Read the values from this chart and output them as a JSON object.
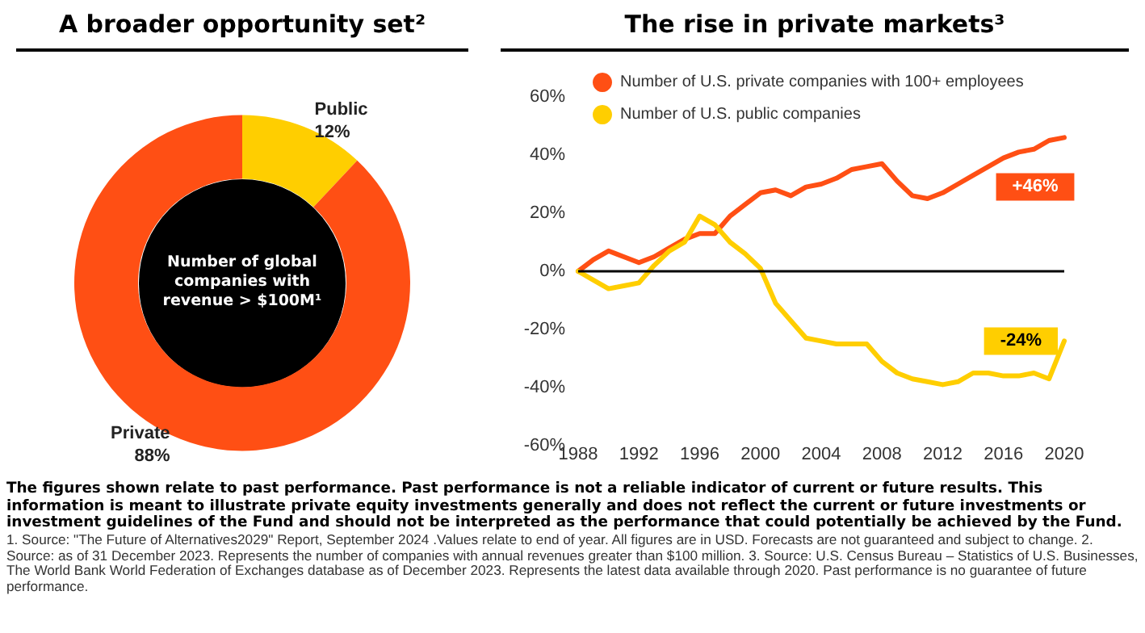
{
  "chart_data": [
    {
      "type": "donut",
      "title": "A broader opportunity set²",
      "categories": [
        "Public",
        "Private"
      ],
      "values": [
        12,
        88
      ],
      "colors": [
        "#ffce00",
        "#ff4f14"
      ],
      "value_labels": [
        "12%",
        "88%"
      ],
      "annotations": [
        "Number of global companies with revenue > $100M¹"
      ]
    },
    {
      "type": "line",
      "title": "The rise in private markets³",
      "x": [
        1988,
        1989,
        1990,
        1991,
        1992,
        1993,
        1994,
        1995,
        1996,
        1997,
        1998,
        1999,
        2000,
        2001,
        2002,
        2003,
        2004,
        2005,
        2006,
        2007,
        2008,
        2009,
        2010,
        2011,
        2012,
        2013,
        2014,
        2015,
        2016,
        2017,
        2018,
        2019,
        2020
      ],
      "series": [
        {
          "name": "Number of U.S. private companies with 100+ employees",
          "color": "#ff4f14",
          "values": [
            0,
            4,
            7,
            5,
            3,
            5,
            8,
            11,
            13,
            13,
            19,
            23,
            27,
            28,
            26,
            29,
            30,
            32,
            35,
            36,
            37,
            31,
            26,
            25,
            27,
            30,
            33,
            36,
            39,
            41,
            42,
            45,
            46
          ],
          "value_labels": [
            null,
            null,
            null,
            null,
            null,
            null,
            null,
            null,
            null,
            null,
            null,
            null,
            null,
            null,
            null,
            null,
            null,
            null,
            null,
            null,
            null,
            null,
            null,
            null,
            null,
            null,
            null,
            null,
            null,
            null,
            null,
            null,
            "+46%"
          ]
        },
        {
          "name": "Number of U.S. public companies",
          "color": "#ffce00",
          "values": [
            0,
            -3,
            -6,
            -5,
            -4,
            2,
            7,
            10,
            19,
            16,
            10,
            6,
            1,
            -11,
            -17,
            -23,
            -24,
            -25,
            -25,
            -25,
            -31,
            -35,
            -37,
            -38,
            -39,
            -38,
            -35,
            -35,
            -36,
            -36,
            -35,
            -37,
            -24
          ],
          "value_labels": [
            null,
            null,
            null,
            null,
            null,
            null,
            null,
            null,
            null,
            null,
            null,
            null,
            null,
            null,
            null,
            null,
            null,
            null,
            null,
            null,
            null,
            null,
            null,
            null,
            null,
            null,
            null,
            null,
            null,
            null,
            null,
            null,
            "-24%"
          ]
        }
      ],
      "xlim": [
        1988,
        2020
      ],
      "xticks": [
        1988,
        1992,
        1996,
        2000,
        2004,
        2008,
        2012,
        2016,
        2020
      ],
      "ylim": [
        -60,
        60
      ],
      "yticks": [
        {
          "value": -60,
          "label": "-60%"
        },
        {
          "value": -40,
          "label": "-40%"
        },
        {
          "value": -20,
          "label": "-20%"
        },
        {
          "value": 0,
          "label": "0%"
        },
        {
          "value": 20,
          "label": "20%"
        },
        {
          "value": 40,
          "label": "40%"
        },
        {
          "value": 60,
          "label": "60%"
        }
      ],
      "ref_lines": [
        {
          "axis": "y",
          "value": 0,
          "color": "#000000"
        }
      ],
      "grid": false,
      "legend": "top left",
      "marker": "none",
      "line_style": "solid",
      "annotations": [
        "The figures shown relate to past performance. Past performance is not a reliable indicator of current or future results. This information is meant to illustrate private equity investments generally and does not reflect the current or future investments or investment guidelines of the Fund and should not be interpreted as the performance that could potentially be achieved by the Fund.",
        "1. Source: \"The Future of Alternatives2029\" Report, September 2024 .Values relate to end of year. All figures are in USD.  Forecasts are not guaranteed and subject to change.",
        "2. Source: as of 31 December 2023. Represents the number of companies with annual revenues greater than $100 million.",
        "3. Source: U.S. Census Bureau – Statistics of U.S. Businesses, The World Bank World Federation of Exchanges database as of December 2023. Represents the latest data available through 2020. Past performance is no guarantee of future performance."
      ]
    }
  ]
}
